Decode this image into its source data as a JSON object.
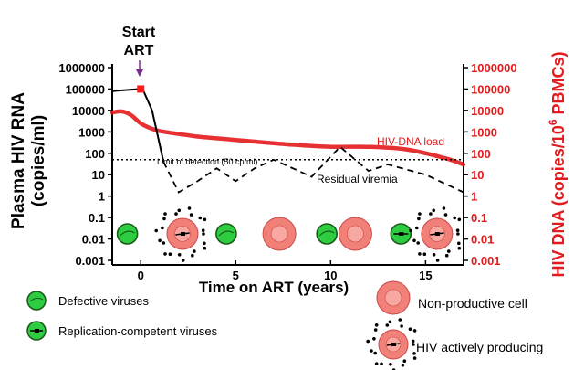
{
  "annotations": {
    "start_art_line1": "Start",
    "start_art_line2": "ART",
    "limit_of_detection": "Limit of detection (50 cp/ml)",
    "residual_viremia": "Residual viremia",
    "hiv_dna_load": "HIV-DNA load"
  },
  "axes": {
    "left_title_line1": "Plasma HIV RNA",
    "left_title_line2": "(copies/ml)",
    "right_title_main": "HIV DNA (copies/10",
    "right_title_sup": "6",
    "right_title_end": " PBMCs)",
    "x_title": "Time on ART (years)",
    "y_ticks": [
      "1000000",
      "100000",
      "10000",
      "1000",
      "100",
      "10",
      "1",
      "0.1",
      "0.01",
      "0.001"
    ],
    "x_ticks": [
      "0",
      "5",
      "10",
      "15"
    ]
  },
  "legend": {
    "defective": "Defective viruses",
    "replication_competent": "Replication-competent viruses",
    "non_productive": "Non-productive cell",
    "actively_producing": "HIV actively producing"
  },
  "colors": {
    "dna_curve": "#e41a1c",
    "arrow": "#7b2d8e",
    "start_marker": "#ff1a1a",
    "cell_outer": "#f08078",
    "cell_inner": "#f8a8a0",
    "virus_fill": "#2ecc40",
    "virus_outline": "#1a5a1a"
  },
  "chart_data": {
    "type": "line",
    "xlabel": "Time on ART (years)",
    "ylabel": "Plasma HIV RNA (copies/ml)",
    "ylabel_right": "HIV DNA (copies/10^6 PBMCs)",
    "y_scale": "log",
    "ylim": [
      0.001,
      1000000
    ],
    "xlim": [
      -1.5,
      17
    ],
    "x_ticks": [
      0,
      5,
      10,
      15
    ],
    "series": [
      {
        "name": "HIV-DNA load",
        "axis": "right",
        "style": "solid-red",
        "x": [
          -1.5,
          -1,
          -0.5,
          0,
          0.5,
          1,
          2,
          3,
          4,
          6,
          8,
          10,
          12,
          14,
          16,
          17
        ],
        "y": [
          8000,
          9000,
          6000,
          2500,
          1500,
          1100,
          800,
          600,
          500,
          350,
          250,
          200,
          200,
          150,
          60,
          30
        ]
      },
      {
        "name": "Plasma HIV RNA (pre-ART)",
        "axis": "left",
        "style": "solid-black",
        "x": [
          -1.5,
          0,
          0.1,
          0.6,
          1.2
        ],
        "y": [
          80000,
          100000,
          100000,
          10000,
          40
        ]
      },
      {
        "name": "Residual viremia",
        "axis": "left",
        "style": "dashed-black",
        "x": [
          1.2,
          2,
          3,
          4,
          5,
          6,
          7,
          9,
          10.5,
          12,
          13,
          15,
          17
        ],
        "y": [
          40,
          1.5,
          5,
          20,
          5,
          20,
          50,
          8,
          200,
          15,
          30,
          10,
          1.5
        ]
      },
      {
        "name": "Limit of detection (50 cp/ml)",
        "axis": "left",
        "style": "dotted-black",
        "x": [
          -1.5,
          17
        ],
        "y": [
          50,
          50
        ]
      }
    ],
    "markers": [
      {
        "name": "Start ART",
        "x": 0,
        "y": 100000,
        "shape": "square"
      }
    ],
    "cells": [
      {
        "x": -0.7,
        "kind": "defective-virus"
      },
      {
        "x": 2.2,
        "kind": "producing-cell"
      },
      {
        "x": 4.5,
        "kind": "defective-virus"
      },
      {
        "x": 7.3,
        "kind": "non-productive-cell"
      },
      {
        "x": 9.8,
        "kind": "defective-virus"
      },
      {
        "x": 11.3,
        "kind": "non-productive-cell"
      },
      {
        "x": 13.7,
        "kind": "replication-competent-virus"
      },
      {
        "x": 15.6,
        "kind": "producing-cell"
      }
    ]
  }
}
